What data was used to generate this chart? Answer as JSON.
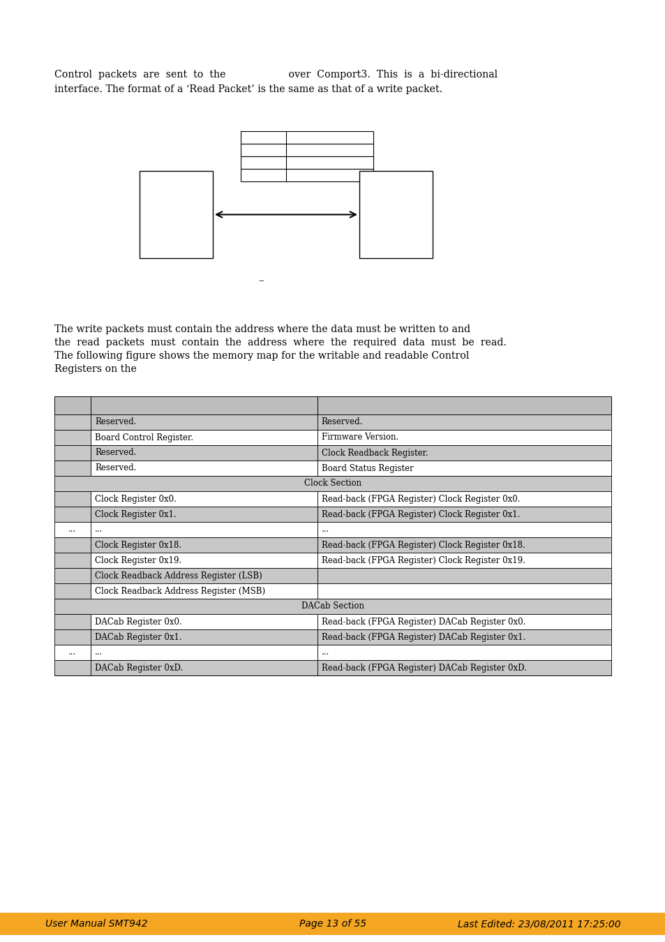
{
  "page_bg": "#ffffff",
  "top_text_line1": "Control  packets  are  sent  to  the                    over  Comport3.  This  is  a  bi-directional",
  "top_text_line2": "interface. The format of a ‘Read Packet’ is the same as that of a write packet.",
  "body_text_line1": "The write packets must contain the address where the data must be written to and",
  "body_text_line2": "the  read  packets  must  contain  the  address  where  the  required  data  must  be  read.",
  "body_text_line3": "The following figure shows the memory map for the writable and readable Control",
  "body_text_line4": "Registers on the",
  "footer_bg": "#f5a623",
  "footer_left": "User Manual SMT942",
  "footer_center": "Page 13 of 55",
  "footer_right": "Last Edited: 23/08/2011 17:25:00",
  "table_rows": [
    {
      "left": "Reserved.",
      "right": "Reserved.",
      "bg": "#c8c8c8",
      "addr_bg": "#c8c8c8"
    },
    {
      "left": "Board Control Register.",
      "right": "Firmware Version.",
      "bg": "#ffffff",
      "addr_bg": "#c8c8c8"
    },
    {
      "left": "Reserved.",
      "right": "Clock Readback Register.",
      "bg": "#c8c8c8",
      "addr_bg": "#c8c8c8"
    },
    {
      "left": "Reserved.",
      "right": "Board Status Register",
      "bg": "#ffffff",
      "addr_bg": "#c8c8c8"
    },
    {
      "left": "Clock Section",
      "right": "",
      "bg": "#c8c8c8",
      "section": true
    },
    {
      "left": "Clock Register 0x0.",
      "right": "Read-back (FPGA Register) Clock Register 0x0.",
      "bg": "#ffffff",
      "addr_bg": "#c8c8c8"
    },
    {
      "left": "Clock Register 0x1.",
      "right": "Read-back (FPGA Register) Clock Register 0x1.",
      "bg": "#c8c8c8",
      "addr_bg": "#c8c8c8"
    },
    {
      "left": "...",
      "right": "...",
      "bg": "#ffffff",
      "addr_bg": "#ffffff",
      "dots": true
    },
    {
      "left": "Clock Register 0x18.",
      "right": "Read-back (FPGA Register) Clock Register 0x18.",
      "bg": "#c8c8c8",
      "addr_bg": "#c8c8c8"
    },
    {
      "left": "Clock Register 0x19.",
      "right": "Read-back (FPGA Register) Clock Register 0x19.",
      "bg": "#ffffff",
      "addr_bg": "#c8c8c8"
    },
    {
      "left": "Clock Readback Address Register (LSB)",
      "right": "",
      "bg": "#c8c8c8",
      "addr_bg": "#c8c8c8"
    },
    {
      "left": "Clock Readback Address Register (MSB)",
      "right": "",
      "bg": "#ffffff",
      "addr_bg": "#c8c8c8"
    },
    {
      "left": "DACab Section",
      "right": "",
      "bg": "#c8c8c8",
      "section": true
    },
    {
      "left": "DACab Register 0x0.",
      "right": "Read-back (FPGA Register) DACab Register 0x0.",
      "bg": "#ffffff",
      "addr_bg": "#c8c8c8"
    },
    {
      "left": "DACab Register 0x1.",
      "right": "Read-back (FPGA Register) DACab Register 0x1.",
      "bg": "#c8c8c8",
      "addr_bg": "#c8c8c8"
    },
    {
      "left": "...",
      "right": "...",
      "bg": "#ffffff",
      "addr_bg": "#ffffff",
      "dots": true
    },
    {
      "left": "DACab Register 0xD.",
      "right": "Read-back (FPGA Register) DACab Register 0xD.",
      "bg": "#c8c8c8",
      "addr_bg": "#c8c8c8"
    }
  ]
}
